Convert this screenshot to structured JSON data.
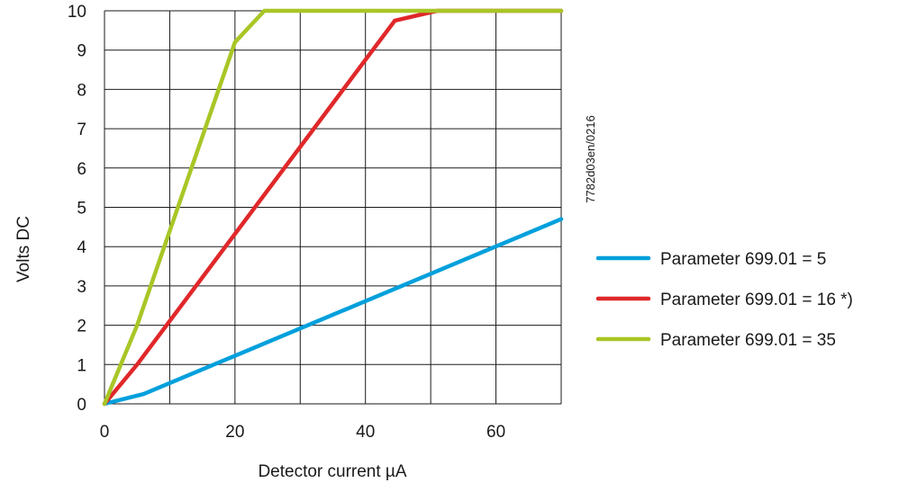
{
  "chart_data": {
    "type": "line",
    "xlabel": "Detector current µA",
    "ylabel": "Volts DC",
    "xlim": [
      0,
      70
    ],
    "ylim": [
      0,
      10
    ],
    "xticks": [
      0,
      20,
      40,
      60
    ],
    "yticks": [
      0,
      1,
      2,
      3,
      4,
      5,
      6,
      7,
      8,
      9,
      10
    ],
    "grid": true,
    "legend_position": "right",
    "code": "7782d03en/0216",
    "series": [
      {
        "name": "Parameter 699.01 = 5",
        "color": "#00a0dc",
        "x": [
          0,
          6,
          70
        ],
        "y": [
          0,
          0.25,
          4.7
        ]
      },
      {
        "name": "Parameter 699.01 = 16 *)",
        "color": "#e0282a",
        "x": [
          0,
          5,
          44.5,
          51,
          70
        ],
        "y": [
          0,
          1,
          9.75,
          10,
          10
        ]
      },
      {
        "name": "Parameter 699.01 = 35",
        "color": "#a8c626",
        "x": [
          0,
          5,
          20,
          24.5,
          70
        ],
        "y": [
          0,
          2,
          9.2,
          10,
          10
        ]
      }
    ]
  }
}
